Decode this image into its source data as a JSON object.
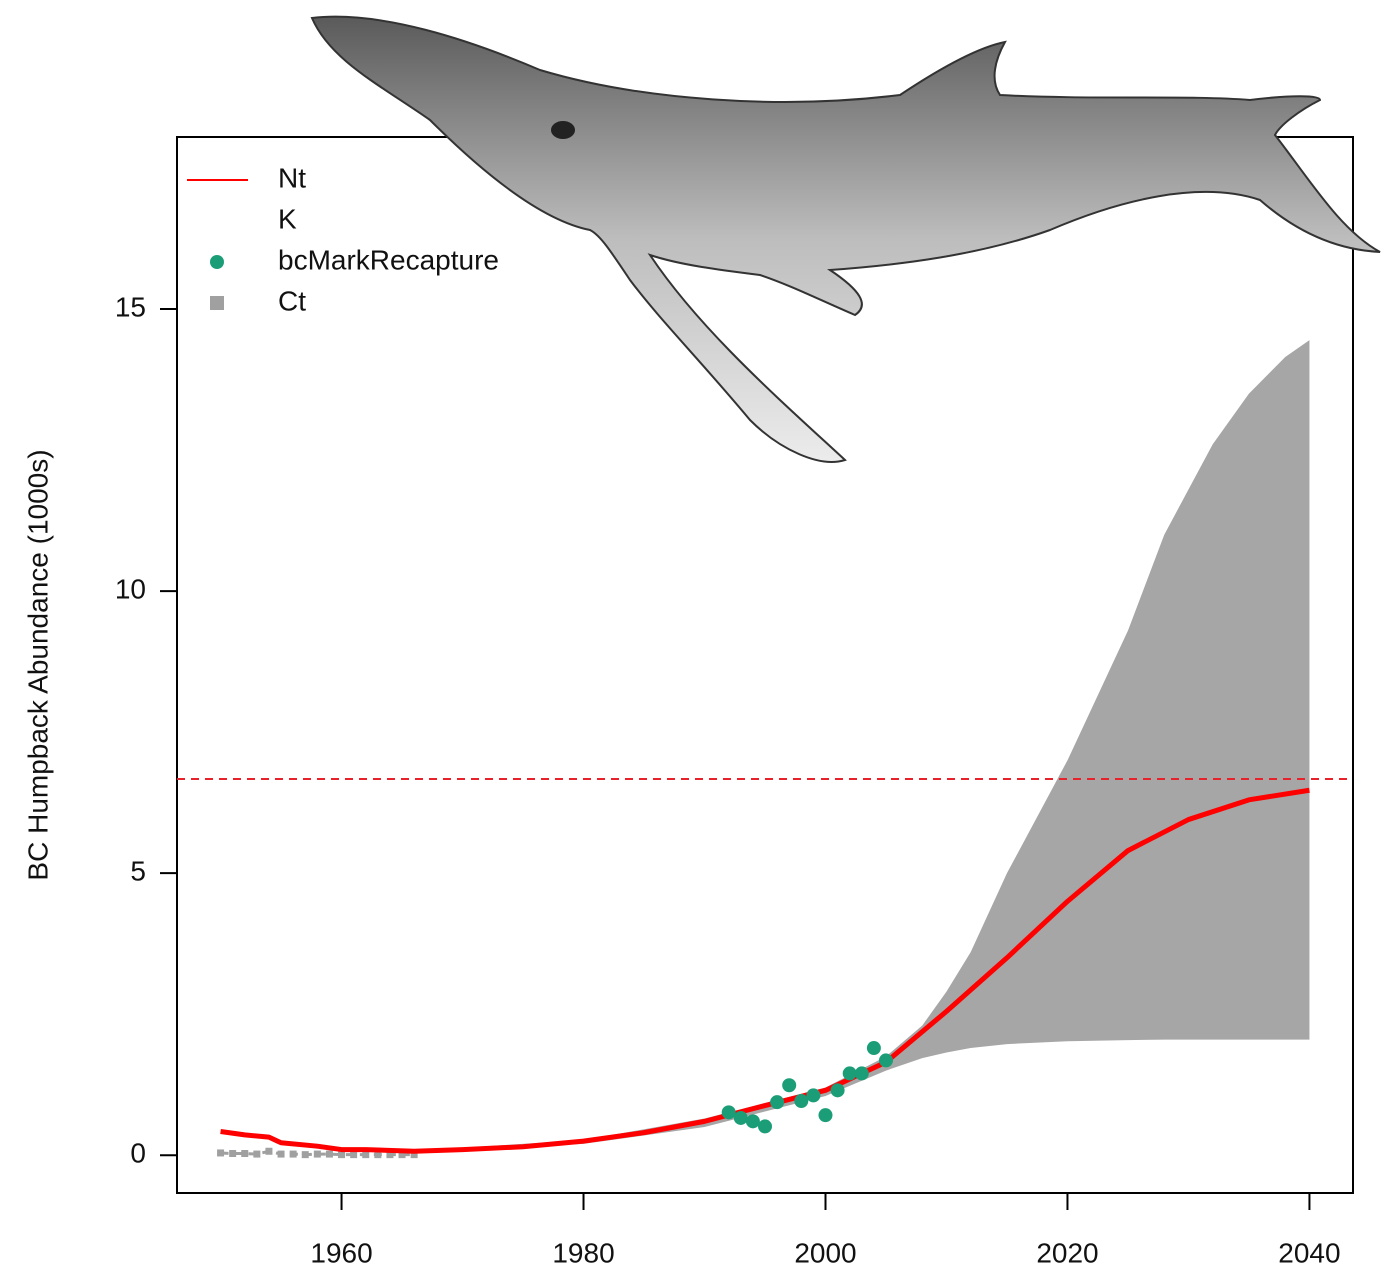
{
  "chart_data": {
    "type": "line",
    "y_label": "BC Humpback Abundance (1000s)",
    "xlim": [
      1946.4,
      2043.6
    ],
    "xticks": [
      1960,
      1980,
      2000,
      2020,
      2040
    ],
    "ylim": [
      -0.67,
      18.05
    ],
    "yticks": [
      0,
      5,
      10,
      15
    ],
    "band": {
      "color": "#a6a6a6",
      "x": [
        1966,
        1980,
        1990,
        2000,
        2005,
        2008,
        2010,
        2012,
        2015,
        2020,
        2025,
        2028,
        2032,
        2035,
        2038,
        2040
      ],
      "lower": [
        0.06,
        0.2,
        0.5,
        1.05,
        1.5,
        1.72,
        1.82,
        1.9,
        1.97,
        2.02,
        2.04,
        2.05,
        2.05,
        2.05,
        2.05,
        2.05
      ],
      "upper": [
        0.08,
        0.27,
        0.65,
        1.2,
        1.75,
        2.3,
        2.9,
        3.6,
        5.0,
        7.0,
        9.3,
        11.0,
        12.6,
        13.5,
        14.15,
        14.45
      ]
    },
    "series": [
      {
        "name": "Nt",
        "color": "#ff0000",
        "line": "solid",
        "x": [
          1950,
          1952,
          1954,
          1955,
          1958,
          1960,
          1962,
          1966,
          1970,
          1975,
          1980,
          1985,
          1990,
          1995,
          2000,
          2005,
          2010,
          2015,
          2020,
          2025,
          2030,
          2035,
          2040
        ],
        "values": [
          0.42,
          0.36,
          0.32,
          0.22,
          0.16,
          0.1,
          0.1,
          0.07,
          0.1,
          0.15,
          0.25,
          0.4,
          0.6,
          0.88,
          1.15,
          1.65,
          2.55,
          3.5,
          4.5,
          5.4,
          5.95,
          6.3,
          6.47
        ]
      },
      {
        "name": "K",
        "color": "#e8222a",
        "line": "dashed",
        "values": [
          6.67
        ]
      },
      {
        "name": "bcMarkRecapture",
        "color": "#1b9e77",
        "marker": "circle",
        "x": [
          1992,
          1993,
          1994,
          1995,
          1996,
          1997,
          1998,
          1999,
          2000,
          2001,
          2002,
          2003,
          2004,
          2005
        ],
        "values": [
          0.76,
          0.66,
          0.6,
          0.51,
          0.94,
          1.24,
          0.96,
          1.06,
          0.71,
          1.15,
          1.45,
          1.45,
          1.9,
          1.68
        ]
      },
      {
        "name": "Ct",
        "color": "#a0a0a0",
        "marker": "square",
        "line": "dashed",
        "x": [
          1950,
          1951,
          1952,
          1953,
          1954,
          1955,
          1956,
          1957,
          1958,
          1959,
          1960,
          1961,
          1962,
          1963,
          1964,
          1965,
          1966
        ],
        "values": [
          0.04,
          0.03,
          0.03,
          0.02,
          0.07,
          0.02,
          0.02,
          0.01,
          0.02,
          0.02,
          0.01,
          0.01,
          0.01,
          0.01,
          0.01,
          0.01,
          0.01
        ]
      }
    ]
  }
}
